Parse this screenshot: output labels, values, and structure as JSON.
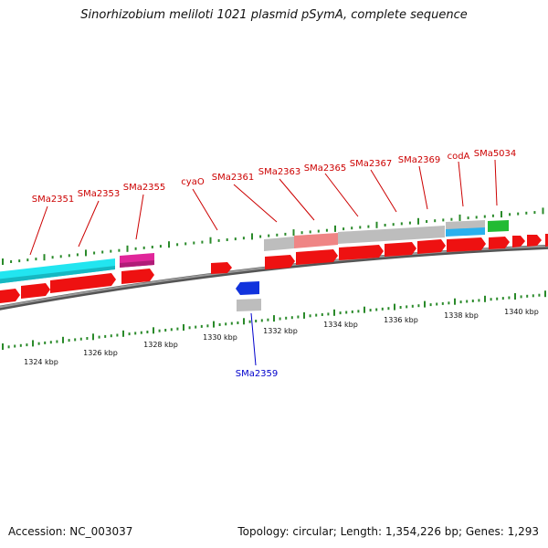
{
  "title": "Sinorhizobium meliloti 1021 plasmid pSymA, complete sequence",
  "footer": {
    "accession": "Accession: NC_003037",
    "summary": "Topology: circular; Length: 1,354,226 bp; Genes: 1,293"
  },
  "colors": {
    "backbone": "#7f7f7f",
    "forward_cds": "#ee1111",
    "reverse_cds": "#1133dd",
    "tick": "#2a8a2a",
    "label_forward": "#cc0000",
    "label_reverse": "#0000cc",
    "feature_cyan": "#22e5f0",
    "feature_magenta": "#e0269a",
    "feature_gray": "#bdbdbd",
    "feature_pink": "#ef8585",
    "feature_blue": "#2ab0ee",
    "feature_green": "#22bb33"
  },
  "kbp_labels": [
    "1324 kbp",
    "1326 kbp",
    "1328 kbp",
    "1330 kbp",
    "1332 kbp",
    "1334 kbp",
    "1336 kbp",
    "1338 kbp",
    "1340 kbp"
  ],
  "gene_labels": [
    {
      "name": "SMa2351",
      "strand": "forward"
    },
    {
      "name": "SMa2353",
      "strand": "forward"
    },
    {
      "name": "SMa2355",
      "strand": "forward"
    },
    {
      "name": "cyaO",
      "strand": "forward"
    },
    {
      "name": "SMa2361",
      "strand": "forward"
    },
    {
      "name": "SMa2363",
      "strand": "forward"
    },
    {
      "name": "SMa2365",
      "strand": "forward"
    },
    {
      "name": "SMa2367",
      "strand": "forward"
    },
    {
      "name": "SMa2369",
      "strand": "forward"
    },
    {
      "name": "codA",
      "strand": "forward"
    },
    {
      "name": "SMa5034",
      "strand": "forward"
    },
    {
      "name": "SMa2359",
      "strand": "reverse"
    }
  ]
}
